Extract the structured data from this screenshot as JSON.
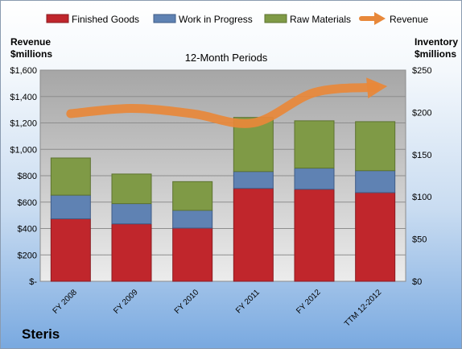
{
  "chart_data": {
    "type": "bar",
    "stacked": true,
    "title": "12-Month Periods",
    "company": "Steris",
    "categories": [
      "FY 2008",
      "FY 2009",
      "FY 2010",
      "FY 2011",
      "FY 2012",
      "TTM 12-2012"
    ],
    "left_axis": {
      "label_line1": "Revenue",
      "label_line2": "$millions",
      "ticks": [
        "$-",
        "$200",
        "$400",
        "$600",
        "$800",
        "$1,000",
        "$1,200",
        "$1,400",
        "$1,600"
      ],
      "range": [
        0,
        1600
      ]
    },
    "right_axis": {
      "label_line1": "Inventory",
      "label_line2": "$millions",
      "ticks": [
        "$0",
        "$50",
        "$100",
        "$150",
        "$200",
        "$250"
      ],
      "range": [
        0,
        250
      ]
    },
    "series": [
      {
        "name": "Finished Goods",
        "axis": "right",
        "color": "#c0262c",
        "values": [
          74,
          68,
          63,
          110,
          109,
          105
        ]
      },
      {
        "name": "Work in Progress",
        "axis": "right",
        "color": "#5f82b3",
        "values": [
          28,
          24,
          21,
          20,
          25,
          26
        ]
      },
      {
        "name": "Raw Materials",
        "axis": "right",
        "color": "#7f9a46",
        "values": [
          44,
          35,
          34,
          64,
          56,
          58
        ]
      },
      {
        "name": "Revenue",
        "axis": "left",
        "type": "line",
        "color": "#e8883a",
        "values": [
          1270,
          1310,
          1270,
          1200,
          1430,
          1470
        ]
      }
    ],
    "grid": true,
    "legend_position": "top"
  }
}
